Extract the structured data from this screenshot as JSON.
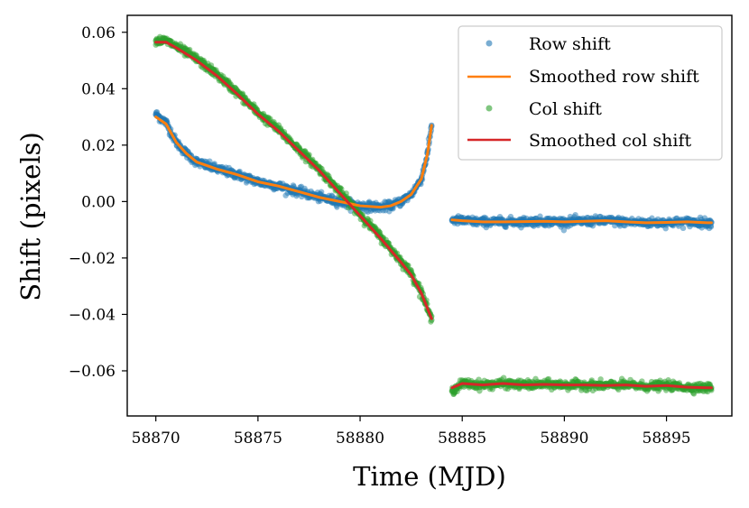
{
  "chart_data": {
    "type": "scatter",
    "title": "",
    "xlabel": "Time (MJD)",
    "ylabel": "Shift (pixels)",
    "xlim": [
      58868.6,
      58898.2
    ],
    "ylim": [
      -0.076,
      0.066
    ],
    "xticks": [
      58870,
      58875,
      58880,
      58885,
      58890,
      58895
    ],
    "yticks": [
      -0.06,
      -0.04,
      -0.02,
      0.0,
      0.02,
      0.04,
      0.06
    ],
    "ytick_labels": [
      "−0.06",
      "−0.04",
      "−0.02",
      "0.00",
      "0.02",
      "0.04",
      "0.06"
    ],
    "grid": false,
    "legend_position": "top-right",
    "colors": {
      "row_points": "#1f77b4",
      "row_smooth": "#ff7f0e",
      "col_points": "#2ca02c",
      "col_smooth": "#d62728"
    },
    "series": [
      {
        "name": "Row shift",
        "kind": "points",
        "segments": [
          {
            "x": [
              58870.0,
              58870.5,
              58871.0,
              58871.5,
              58872.0,
              58873.0,
              58874.0,
              58875.0,
              58876.0,
              58877.0,
              58878.0,
              58879.0,
              58880.0,
              58881.0,
              58881.5,
              58882.0,
              58882.5,
              58883.0,
              58883.3,
              58883.5
            ],
            "y": [
              0.031,
              0.028,
              0.021,
              0.017,
              0.014,
              0.0115,
              0.0095,
              0.007,
              0.0055,
              0.0035,
              0.0015,
              0.0,
              -0.0015,
              -0.002,
              -0.0015,
              0.0,
              0.0025,
              0.008,
              0.017,
              0.027
            ]
          },
          {
            "x": [
              58884.5,
              58885.0,
              58886.0,
              58887.0,
              58888.0,
              58889.0,
              58890.0,
              58891.0,
              58892.0,
              58893.0,
              58894.0,
              58895.0,
              58896.0,
              58897.0,
              58897.2
            ],
            "y": [
              -0.0065,
              -0.0068,
              -0.0072,
              -0.0072,
              -0.0071,
              -0.007,
              -0.0072,
              -0.007,
              -0.0068,
              -0.0072,
              -0.0075,
              -0.0074,
              -0.0072,
              -0.0075,
              -0.0075
            ]
          }
        ]
      },
      {
        "name": "Smoothed row shift",
        "kind": "line",
        "segments": [
          {
            "x": [
              58870.0,
              58870.5,
              58871.0,
              58871.5,
              58872.0,
              58873.0,
              58874.0,
              58875.0,
              58876.0,
              58877.0,
              58878.0,
              58879.0,
              58880.0,
              58881.0,
              58881.5,
              58882.0,
              58882.5,
              58883.0,
              58883.3,
              58883.5
            ],
            "y": [
              0.03,
              0.0275,
              0.021,
              0.017,
              0.014,
              0.0115,
              0.0095,
              0.007,
              0.0055,
              0.0035,
              0.0015,
              0.0,
              -0.0015,
              -0.002,
              -0.0015,
              0.0,
              0.0025,
              0.008,
              0.017,
              0.027
            ]
          },
          {
            "x": [
              58884.5,
              58885.0,
              58886.0,
              58887.0,
              58888.0,
              58889.0,
              58890.0,
              58891.0,
              58892.0,
              58893.0,
              58894.0,
              58895.0,
              58896.0,
              58897.0,
              58897.2
            ],
            "y": [
              -0.0065,
              -0.0068,
              -0.0072,
              -0.0072,
              -0.0071,
              -0.007,
              -0.0072,
              -0.007,
              -0.0068,
              -0.0072,
              -0.0075,
              -0.0074,
              -0.0072,
              -0.0075,
              -0.0075
            ]
          }
        ]
      },
      {
        "name": "Col shift",
        "kind": "points",
        "segments": [
          {
            "x": [
              58870.0,
              58870.5,
              58871.0,
              58872.0,
              58873.0,
              58874.0,
              58875.0,
              58876.0,
              58877.0,
              58878.0,
              58879.0,
              58880.0,
              58881.0,
              58882.0,
              58882.5,
              58883.0,
              58883.5
            ],
            "y": [
              0.057,
              0.057,
              0.055,
              0.0505,
              0.045,
              0.0385,
              0.0315,
              0.0255,
              0.0185,
              0.0115,
              0.0035,
              -0.0045,
              -0.0125,
              -0.021,
              -0.0255,
              -0.032,
              -0.042
            ]
          },
          {
            "x": [
              58884.5,
              58885.0,
              58886.0,
              58887.0,
              58888.0,
              58889.0,
              58890.0,
              58891.0,
              58892.0,
              58893.0,
              58894.0,
              58895.0,
              58896.0,
              58897.0,
              58897.2
            ],
            "y": [
              -0.067,
              -0.0645,
              -0.065,
              -0.0645,
              -0.065,
              -0.0648,
              -0.065,
              -0.065,
              -0.0652,
              -0.065,
              -0.0655,
              -0.0652,
              -0.0658,
              -0.066,
              -0.066
            ]
          }
        ]
      },
      {
        "name": "Smoothed col shift",
        "kind": "line",
        "segments": [
          {
            "x": [
              58870.0,
              58870.5,
              58871.0,
              58872.0,
              58873.0,
              58874.0,
              58875.0,
              58876.0,
              58877.0,
              58878.0,
              58879.0,
              58880.0,
              58881.0,
              58882.0,
              58882.5,
              58883.0,
              58883.5
            ],
            "y": [
              0.0565,
              0.0565,
              0.0545,
              0.05,
              0.0445,
              0.038,
              0.031,
              0.025,
              0.018,
              0.011,
              0.003,
              -0.005,
              -0.013,
              -0.0215,
              -0.026,
              -0.0325,
              -0.0415
            ]
          },
          {
            "x": [
              58884.5,
              58885.0,
              58886.0,
              58887.0,
              58888.0,
              58889.0,
              58890.0,
              58891.0,
              58892.0,
              58893.0,
              58894.0,
              58895.0,
              58896.0,
              58897.0,
              58897.2
            ],
            "y": [
              -0.066,
              -0.0645,
              -0.065,
              -0.0645,
              -0.065,
              -0.0648,
              -0.065,
              -0.065,
              -0.0652,
              -0.065,
              -0.0655,
              -0.0652,
              -0.0658,
              -0.066,
              -0.066
            ]
          }
        ]
      }
    ]
  }
}
